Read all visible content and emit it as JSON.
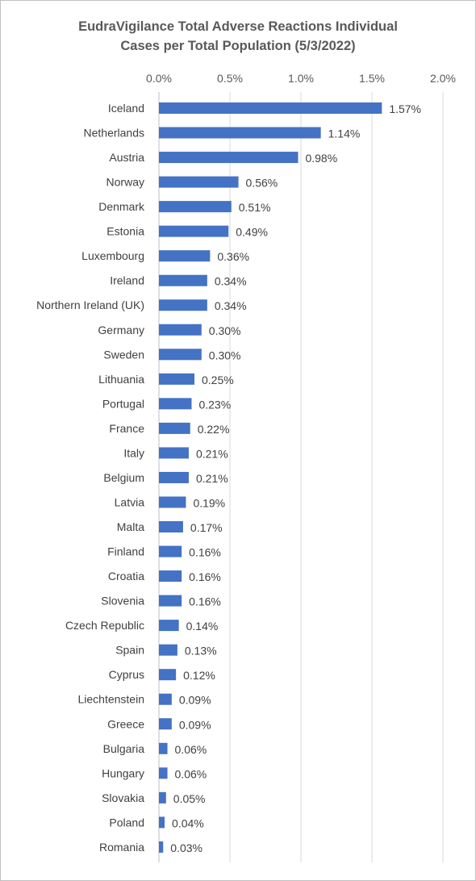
{
  "chart_data": {
    "type": "bar",
    "orientation": "horizontal",
    "title_lines": [
      "EudraVigilance Total Adverse Reactions Individual",
      "Cases per Total Population (5/3/2022)"
    ],
    "xlim": [
      0,
      2.0
    ],
    "xticks": [
      0,
      0.5,
      1.0,
      1.5,
      2.0
    ],
    "xtick_labels": [
      "0.0%",
      "0.5%",
      "1.0%",
      "1.5%",
      "2.0%"
    ],
    "x_axis_position": "top",
    "grid": true,
    "bar_color": "#4472c4",
    "categories": [
      "Iceland",
      "Netherlands",
      "Austria",
      "Norway",
      "Denmark",
      "Estonia",
      "Luxembourg",
      "Ireland",
      "Northern Ireland (UK)",
      "Germany",
      "Sweden",
      "Lithuania",
      "Portugal",
      "France",
      "Italy",
      "Belgium",
      "Latvia",
      "Malta",
      "Finland",
      "Croatia",
      "Slovenia",
      "Czech Republic",
      "Spain",
      "Cyprus",
      "Liechtenstein",
      "Greece",
      "Bulgaria",
      "Hungary",
      "Slovakia",
      "Poland",
      "Romania"
    ],
    "values": [
      1.57,
      1.14,
      0.98,
      0.56,
      0.51,
      0.49,
      0.36,
      0.34,
      0.34,
      0.3,
      0.3,
      0.25,
      0.23,
      0.22,
      0.21,
      0.21,
      0.19,
      0.17,
      0.16,
      0.16,
      0.16,
      0.14,
      0.13,
      0.12,
      0.09,
      0.09,
      0.06,
      0.06,
      0.05,
      0.04,
      0.03
    ],
    "value_labels": [
      "1.57%",
      "1.14%",
      "0.98%",
      "0.56%",
      "0.51%",
      "0.49%",
      "0.36%",
      "0.34%",
      "0.34%",
      "0.30%",
      "0.30%",
      "0.25%",
      "0.23%",
      "0.22%",
      "0.21%",
      "0.21%",
      "0.19%",
      "0.17%",
      "0.16%",
      "0.16%",
      "0.16%",
      "0.14%",
      "0.13%",
      "0.12%",
      "0.09%",
      "0.09%",
      "0.06%",
      "0.06%",
      "0.05%",
      "0.04%",
      "0.03%"
    ]
  }
}
